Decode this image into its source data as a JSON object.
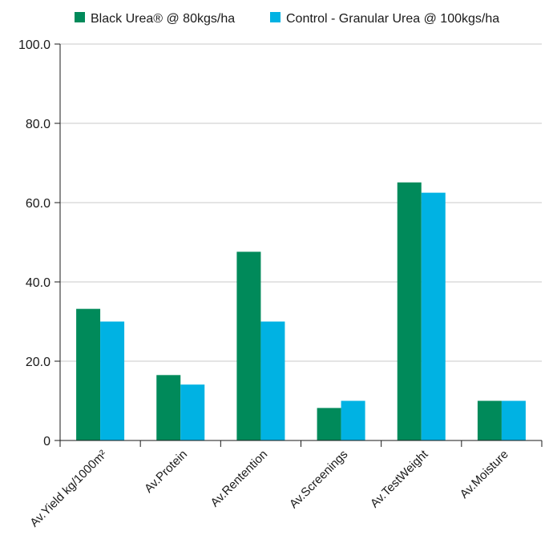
{
  "chart_data": {
    "type": "bar",
    "title": "",
    "xlabel": "",
    "ylabel": "",
    "ylim": [
      0,
      100
    ],
    "yticks": [
      0,
      20,
      40,
      60,
      80,
      100
    ],
    "ytick_labels": [
      "0",
      "20.0",
      "40.0",
      "60.0",
      "80.0",
      "100.0"
    ],
    "grid": true,
    "legend_position": "top-right",
    "categories": [
      "Av.Yield kg/1000m²",
      "Av.Protein",
      "Av.Rentention",
      "Av.Screenings",
      "Av.TestWeight",
      "Av.Moisture"
    ],
    "series": [
      {
        "name": "Black Urea® @ 80kgs/ha",
        "color": "#008a5a",
        "values": [
          33.2,
          16.5,
          47.6,
          8.2,
          65.1,
          10.0
        ]
      },
      {
        "name": "Control - Granular Urea @ 100kgs/ha",
        "color": "#00b2e3",
        "values": [
          30.0,
          14.1,
          30.0,
          10.0,
          62.5,
          10.0
        ]
      }
    ]
  }
}
